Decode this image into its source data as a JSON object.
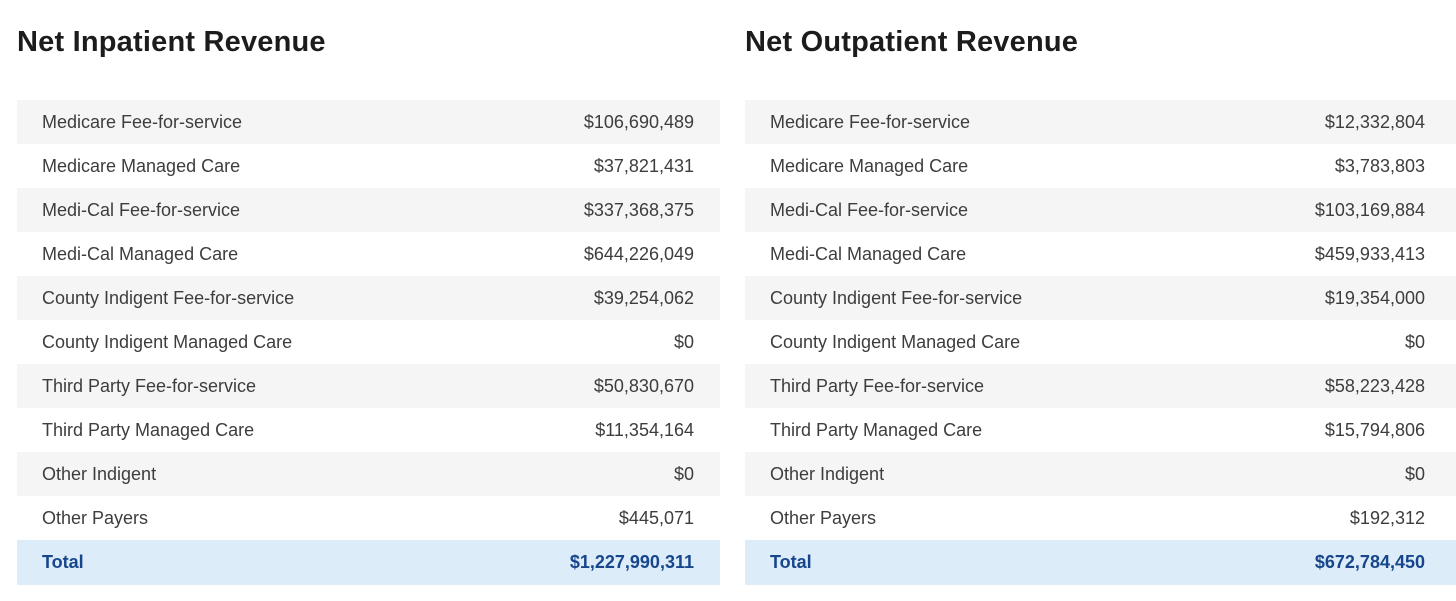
{
  "colors": {
    "stripe": "#f5f5f5",
    "total_bg": "#dcecf8",
    "total_text": "#17468c",
    "row_text": "#3d3d3d",
    "title_text": "#1c1c1c"
  },
  "tables": [
    {
      "title": "Net Inpatient Revenue",
      "rows": [
        {
          "label": "Medicare Fee-for-service",
          "value": "$106,690,489"
        },
        {
          "label": "Medicare Managed Care",
          "value": "$37,821,431"
        },
        {
          "label": "Medi-Cal Fee-for-service",
          "value": "$337,368,375"
        },
        {
          "label": "Medi-Cal Managed Care",
          "value": "$644,226,049"
        },
        {
          "label": "County Indigent Fee-for-service",
          "value": "$39,254,062"
        },
        {
          "label": "County Indigent Managed Care",
          "value": "$0"
        },
        {
          "label": "Third Party Fee-for-service",
          "value": "$50,830,670"
        },
        {
          "label": "Third Party Managed Care",
          "value": "$11,354,164"
        },
        {
          "label": "Other Indigent",
          "value": "$0"
        },
        {
          "label": "Other Payers",
          "value": "$445,071"
        }
      ],
      "total": {
        "label": "Total",
        "value": "$1,227,990,311"
      }
    },
    {
      "title": "Net Outpatient Revenue",
      "rows": [
        {
          "label": "Medicare Fee-for-service",
          "value": "$12,332,804"
        },
        {
          "label": "Medicare Managed Care",
          "value": "$3,783,803"
        },
        {
          "label": "Medi-Cal Fee-for-service",
          "value": "$103,169,884"
        },
        {
          "label": "Medi-Cal Managed Care",
          "value": "$459,933,413"
        },
        {
          "label": "County Indigent Fee-for-service",
          "value": "$19,354,000"
        },
        {
          "label": "County Indigent Managed Care",
          "value": "$0"
        },
        {
          "label": "Third Party Fee-for-service",
          "value": "$58,223,428"
        },
        {
          "label": "Third Party Managed Care",
          "value": "$15,794,806"
        },
        {
          "label": "Other Indigent",
          "value": "$0"
        },
        {
          "label": "Other Payers",
          "value": "$192,312"
        }
      ],
      "total": {
        "label": "Total",
        "value": "$672,784,450"
      }
    }
  ]
}
